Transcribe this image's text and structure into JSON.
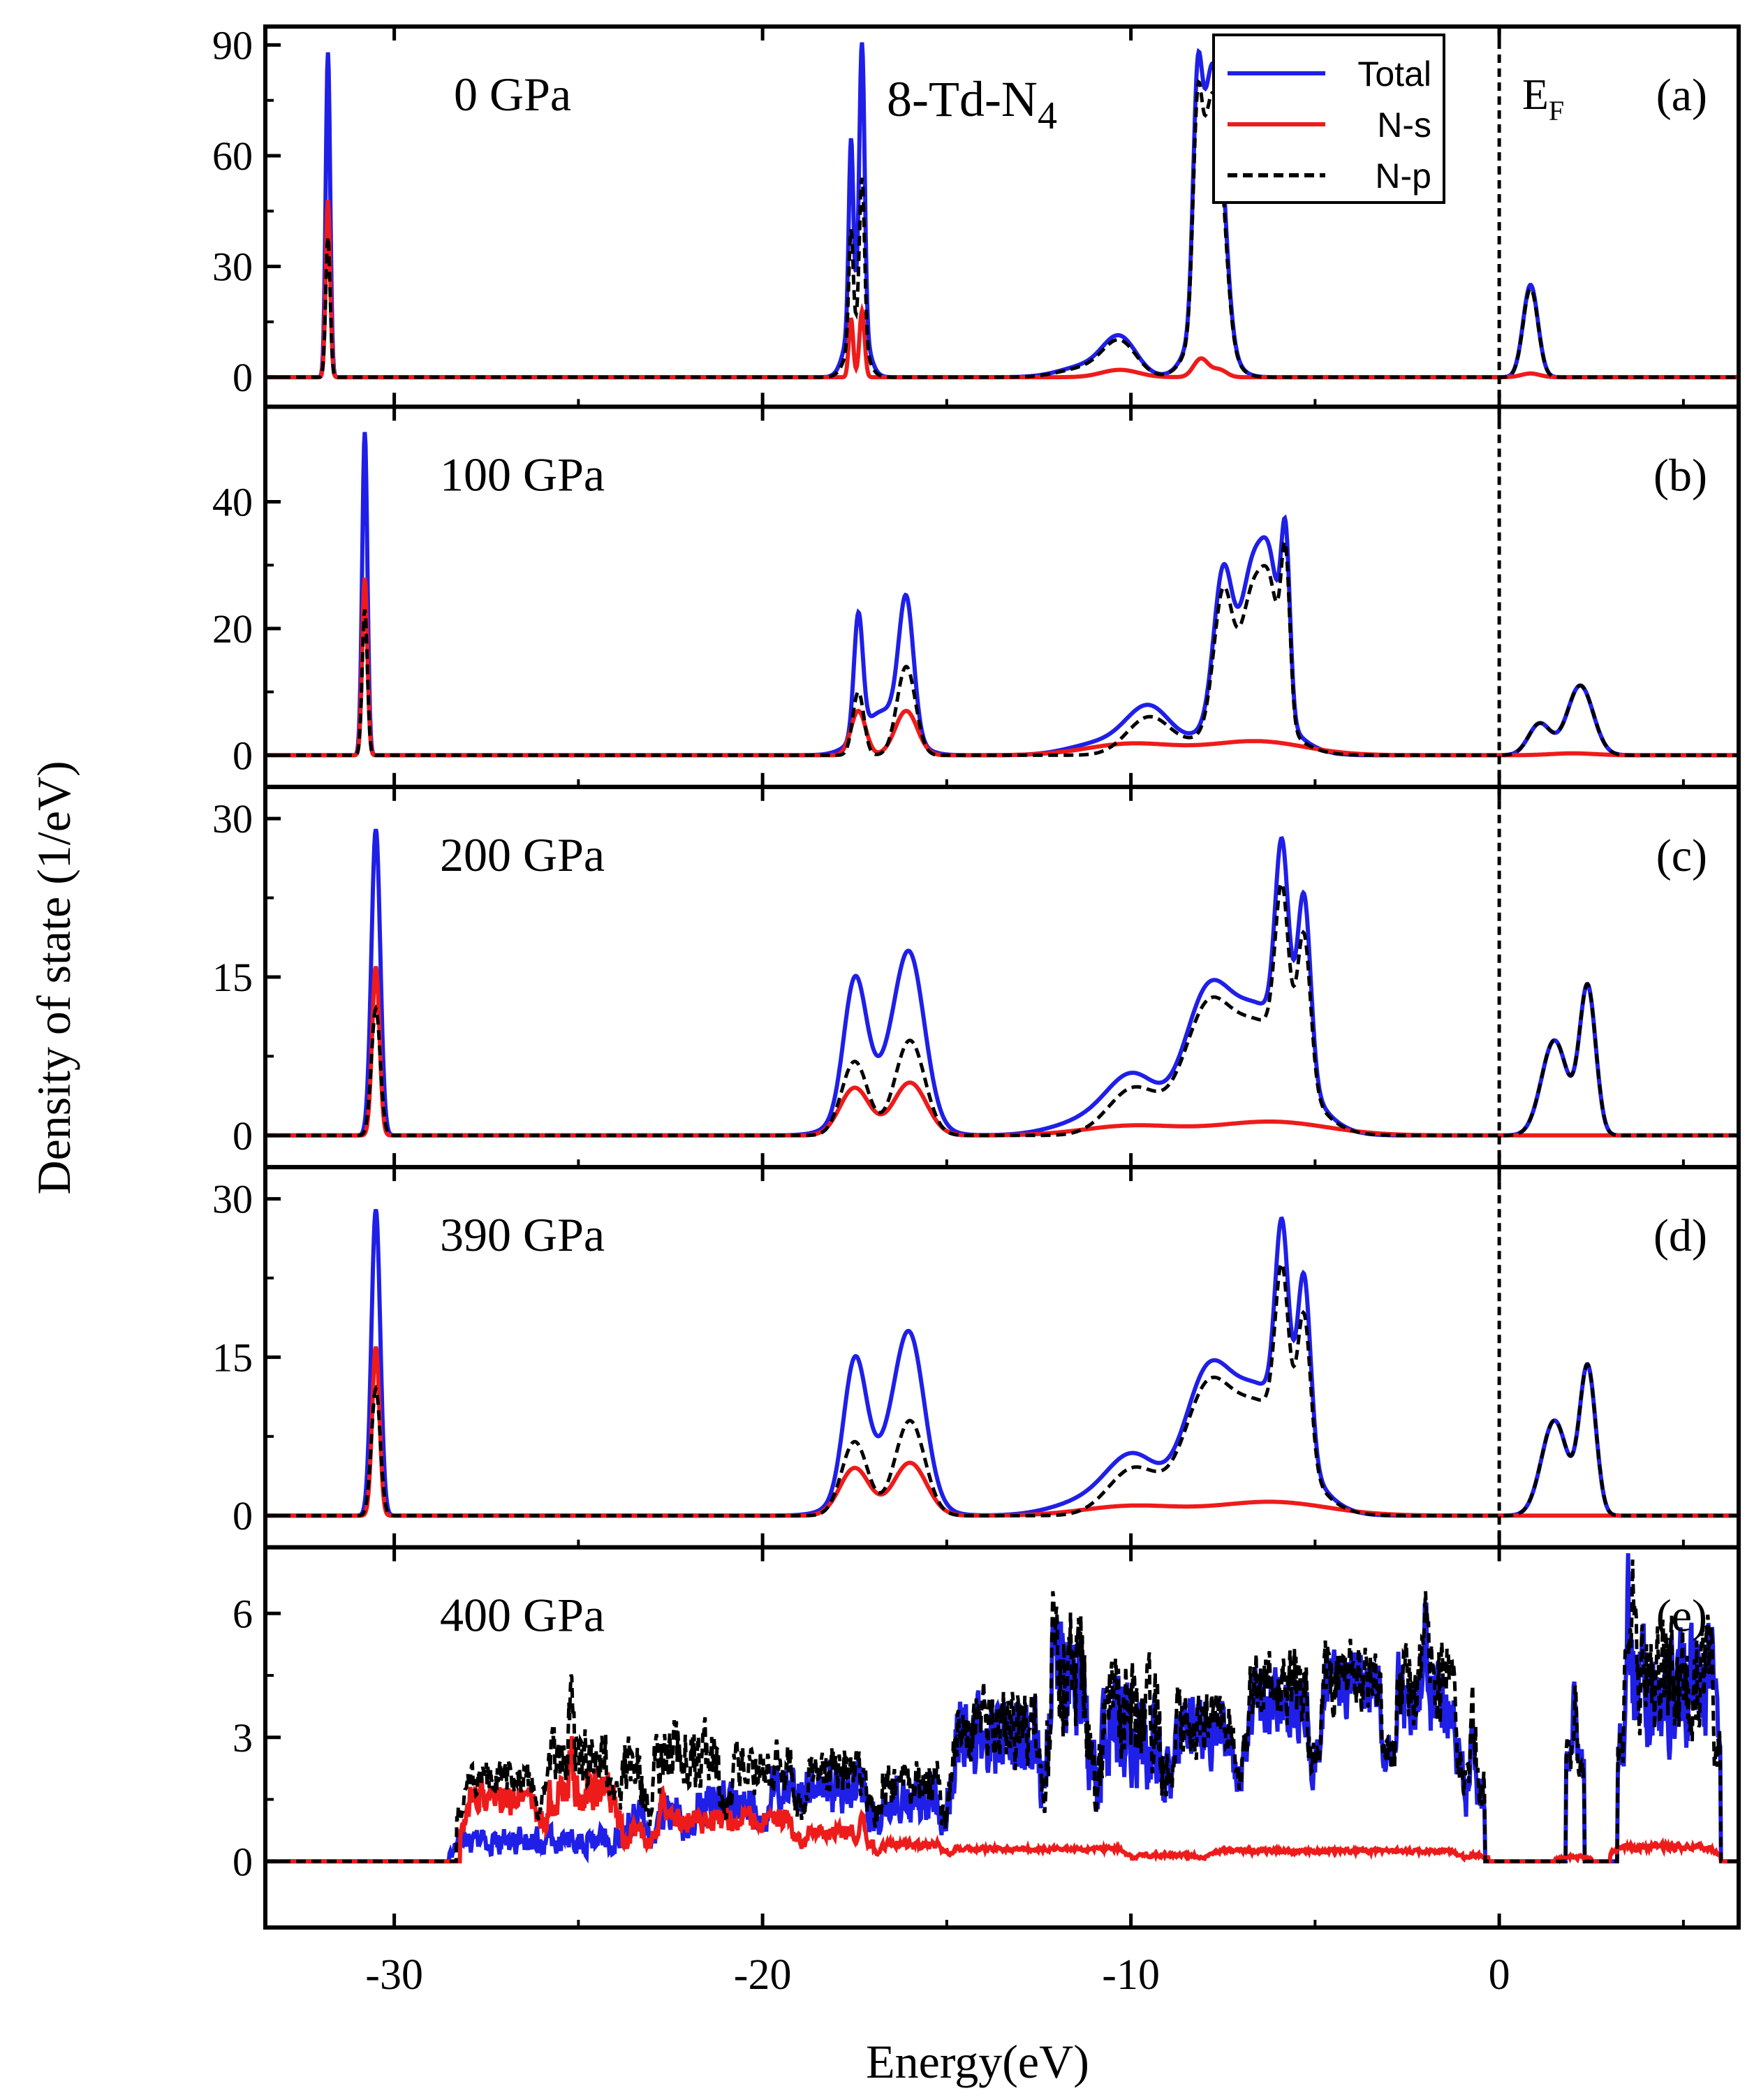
{
  "figure": {
    "y_axis_label": "Density of state (1/eV)",
    "x_axis_label": "Energy(eV)",
    "x_tick_labels": [
      "-30",
      "-20",
      "-10",
      "0"
    ],
    "structure_label_prefix": "8-Td-N",
    "structure_label_subscript": "4",
    "fermi_label_main": "E",
    "fermi_label_sub": "F",
    "legend": [
      {
        "name": "Total",
        "color": "#1f1fe8",
        "dash": "solid"
      },
      {
        "name": "N-s",
        "color": "#ee1b1b",
        "dash": "solid"
      },
      {
        "name": "N-p",
        "color": "#000000",
        "dash": "dashed"
      }
    ]
  },
  "chart_data": [
    {
      "type": "line",
      "panel_label": "(a)",
      "pressure_label": "0 GPa",
      "xlim": [
        -33.5,
        6.5
      ],
      "ylim": [
        -8,
        95
      ],
      "y_ticks": [
        0,
        30,
        60,
        90
      ],
      "y_tick_labels": [
        "0",
        "30",
        "60",
        "90"
      ],
      "fermi_level": 0,
      "series": [
        {
          "name": "Total",
          "peaks": [
            [
              -31.8,
              0.06,
              88
            ],
            [
              -17.6,
              0.06,
              48
            ],
            [
              -17.3,
              0.07,
              74
            ],
            [
              -17.45,
              0.25,
              20
            ],
            [
              -10.3,
              0.45,
              10
            ],
            [
              -11.2,
              0.7,
              3
            ],
            [
              -8.2,
              0.12,
              54
            ],
            [
              -7.9,
              0.2,
              45
            ],
            [
              -7.6,
              0.2,
              42
            ],
            [
              -7.9,
              0.45,
              20
            ],
            [
              0.85,
              0.2,
              25
            ]
          ]
        },
        {
          "name": "N-s",
          "peaks": [
            [
              -31.8,
              0.06,
              48
            ],
            [
              -17.6,
              0.06,
              16
            ],
            [
              -17.3,
              0.07,
              18
            ],
            [
              -10.3,
              0.5,
              2
            ],
            [
              -8.1,
              0.2,
              5
            ],
            [
              -7.6,
              0.2,
              2
            ],
            [
              0.85,
              0.25,
              1
            ]
          ]
        },
        {
          "name": "N-p",
          "peaks": [
            [
              -31.8,
              0.06,
              38
            ],
            [
              -17.6,
              0.06,
              30
            ],
            [
              -17.3,
              0.07,
              44
            ],
            [
              -17.45,
              0.25,
              12
            ],
            [
              -10.3,
              0.45,
              9
            ],
            [
              -11.2,
              0.7,
              2.5
            ],
            [
              -8.2,
              0.12,
              49
            ],
            [
              -7.9,
              0.2,
              41
            ],
            [
              -7.6,
              0.2,
              38
            ],
            [
              -7.9,
              0.45,
              18
            ],
            [
              0.85,
              0.2,
              24
            ]
          ]
        }
      ]
    },
    {
      "type": "line",
      "panel_label": "(b)",
      "pressure_label": "100 GPa",
      "xlim": [
        -33.5,
        6.5
      ],
      "ylim": [
        -5,
        55
      ],
      "y_ticks": [
        0,
        20,
        40
      ],
      "y_tick_labels": [
        "0",
        "20",
        "40"
      ],
      "fermi_level": 0,
      "series": [
        {
          "name": "Total",
          "peaks": [
            [
              -30.8,
              0.07,
              51
            ],
            [
              -17.4,
              0.12,
              19
            ],
            [
              -16.1,
              0.2,
              21
            ],
            [
              -16.7,
              0.6,
              7
            ],
            [
              -9.5,
              0.6,
              7
            ],
            [
              -10.7,
              0.9,
              2
            ],
            [
              -7.5,
              0.25,
              22
            ],
            [
              -6.7,
              0.3,
              19
            ],
            [
              -6.2,
              0.25,
              19
            ],
            [
              -5.8,
              0.12,
              26
            ],
            [
              -6.8,
              0.9,
              10
            ],
            [
              1.1,
              0.3,
              5
            ],
            [
              2.2,
              0.35,
              11
            ]
          ]
        },
        {
          "name": "N-s",
          "peaks": [
            [
              -30.8,
              0.07,
              28
            ],
            [
              -17.4,
              0.2,
              7
            ],
            [
              -16.1,
              0.3,
              7
            ],
            [
              -10,
              1.2,
              1.8
            ],
            [
              -6.6,
              1.3,
              2.2
            ],
            [
              2.0,
              0.6,
              0.3
            ]
          ]
        },
        {
          "name": "N-p",
          "peaks": [
            [
              -30.8,
              0.07,
              23
            ],
            [
              -17.4,
              0.15,
              10
            ],
            [
              -16.1,
              0.25,
              14
            ],
            [
              -9.5,
              0.6,
              6
            ],
            [
              -7.5,
              0.25,
              20
            ],
            [
              -6.7,
              0.3,
              17
            ],
            [
              -6.2,
              0.25,
              17
            ],
            [
              -5.8,
              0.12,
              24
            ],
            [
              -6.8,
              0.9,
              8
            ],
            [
              1.1,
              0.3,
              5
            ],
            [
              2.2,
              0.35,
              11
            ]
          ]
        }
      ]
    },
    {
      "type": "line",
      "panel_label": "(c)",
      "pressure_label": "200 GPa",
      "xlim": [
        -33.5,
        6.5
      ],
      "ylim": [
        -3,
        33
      ],
      "y_ticks": [
        0,
        15,
        30
      ],
      "y_tick_labels": [
        "0",
        "15",
        "30"
      ],
      "fermi_level": 0,
      "series": [
        {
          "name": "Total",
          "peaks": [
            [
              -30.5,
              0.12,
              29
            ],
            [
              -17.5,
              0.3,
              12
            ],
            [
              -16.0,
              0.4,
              14
            ],
            [
              -16.7,
              0.8,
              5
            ],
            [
              -9.9,
              0.7,
              5
            ],
            [
              -11.0,
              1.0,
              1.5
            ],
            [
              -8.0,
              0.6,
              10
            ],
            [
              -6.5,
              1.0,
              12
            ],
            [
              -5.9,
              0.18,
              18
            ],
            [
              -5.3,
              0.18,
              17
            ],
            [
              1.5,
              0.35,
              9
            ],
            [
              2.4,
              0.22,
              14
            ]
          ]
        },
        {
          "name": "N-s",
          "peaks": [
            [
              -30.5,
              0.1,
              16
            ],
            [
              -17.5,
              0.4,
              4.5
            ],
            [
              -16.0,
              0.45,
              5
            ],
            [
              -10,
              1.3,
              0.9
            ],
            [
              -6.2,
              1.5,
              1.3
            ]
          ]
        },
        {
          "name": "N-p",
          "peaks": [
            [
              -30.5,
              0.12,
              12
            ],
            [
              -17.5,
              0.35,
              7
            ],
            [
              -16.0,
              0.4,
              9
            ],
            [
              -9.9,
              0.7,
              4.5
            ],
            [
              -8.0,
              0.6,
              9
            ],
            [
              -6.5,
              1.0,
              10.5
            ],
            [
              -5.9,
              0.18,
              15
            ],
            [
              -5.3,
              0.18,
              14
            ],
            [
              1.5,
              0.35,
              9
            ],
            [
              2.4,
              0.22,
              14
            ]
          ]
        }
      ]
    },
    {
      "type": "line",
      "panel_label": "(d)",
      "pressure_label": "390 GPa",
      "xlim": [
        -33.5,
        6.5
      ],
      "ylim": [
        -3,
        33
      ],
      "y_ticks": [
        0,
        15,
        30
      ],
      "y_tick_labels": [
        "0",
        "15",
        "30"
      ],
      "fermi_level": 0,
      "series": [
        {
          "name": "Total",
          "peaks": [
            [
              -30.5,
              0.12,
              29
            ],
            [
              -17.5,
              0.3,
              12
            ],
            [
              -16.0,
              0.4,
              14
            ],
            [
              -16.7,
              0.8,
              5
            ],
            [
              -9.9,
              0.7,
              5
            ],
            [
              -11.0,
              1.0,
              1.5
            ],
            [
              -8.0,
              0.6,
              10
            ],
            [
              -6.5,
              1.0,
              12
            ],
            [
              -5.9,
              0.18,
              18
            ],
            [
              -5.3,
              0.18,
              17
            ],
            [
              1.5,
              0.35,
              9
            ],
            [
              2.4,
              0.22,
              14
            ]
          ]
        },
        {
          "name": "N-s",
          "peaks": [
            [
              -30.5,
              0.1,
              16
            ],
            [
              -17.5,
              0.4,
              4.5
            ],
            [
              -16.0,
              0.45,
              5
            ],
            [
              -10,
              1.3,
              0.9
            ],
            [
              -6.2,
              1.5,
              1.3
            ]
          ]
        },
        {
          "name": "N-p",
          "peaks": [
            [
              -30.5,
              0.12,
              12
            ],
            [
              -17.5,
              0.35,
              7
            ],
            [
              -16.0,
              0.4,
              9
            ],
            [
              -9.9,
              0.7,
              4.5
            ],
            [
              -8.0,
              0.6,
              9
            ],
            [
              -6.5,
              1.0,
              10.5
            ],
            [
              -5.9,
              0.18,
              15
            ],
            [
              -5.3,
              0.18,
              14
            ],
            [
              1.5,
              0.35,
              9
            ],
            [
              2.4,
              0.22,
              14
            ]
          ]
        }
      ]
    },
    {
      "type": "line",
      "panel_label": "(e)",
      "pressure_label": "400 GPa",
      "xlim": [
        -33.5,
        6.5
      ],
      "ylim": [
        -1.6,
        7.6
      ],
      "y_ticks": [
        0,
        3,
        6
      ],
      "y_tick_labels": [
        "0",
        "3",
        "6"
      ],
      "fermi_level": null,
      "series": [
        {
          "name": "Total",
          "noisy_bands": [
            [
              -28.5,
              -24,
              0.5,
              0.3
            ],
            [
              -24,
              -23,
              1.0,
              0.5
            ],
            [
              -23,
              -22,
              1.2,
              0.6
            ],
            [
              -22,
              -20,
              1.4,
              0.5
            ],
            [
              -20,
              -17,
              1.8,
              0.6
            ],
            [
              -17,
              -15,
              1.5,
              0.6
            ],
            [
              -15,
              -12.3,
              3.0,
              1.0
            ],
            [
              -12.3,
              -11,
              4.3,
              1.5
            ],
            [
              -11,
              -9,
              3.2,
              1.3
            ],
            [
              -9,
              -7,
              3.2,
              0.8
            ],
            [
              -7,
              -5,
              4.0,
              0.9
            ],
            [
              -5,
              -3,
              4.3,
              0.8
            ],
            [
              -3,
              -1,
              4.0,
              1.0
            ],
            [
              -1,
              -0.4,
              2.8,
              1.0
            ],
            [
              1.8,
              2.3,
              4.0,
              0.8
            ],
            [
              3.2,
              6.0,
              4.2,
              1.4
            ]
          ],
          "peaks": [
            [
              -12.1,
              0.06,
              2.5
            ],
            [
              -2.0,
              0.06,
              1.6
            ],
            [
              3.5,
              0.05,
              1.8
            ],
            [
              5.8,
              0.08,
              1.5
            ]
          ]
        },
        {
          "name": "N-s",
          "noisy_bands": [
            [
              -28.2,
              -26,
              1.5,
              0.4
            ],
            [
              -26,
              -23.8,
              1.7,
              0.5
            ],
            [
              -23.8,
              -23,
              0.7,
              0.3
            ],
            [
              -23,
              -19,
              1.0,
              0.3
            ],
            [
              -19,
              -17,
              0.7,
              0.2
            ],
            [
              -17,
              -15,
              0.4,
              0.1
            ],
            [
              -15,
              -10,
              0.3,
              0.05
            ],
            [
              -10,
              -8,
              0.15,
              0.04
            ],
            [
              -8,
              -1,
              0.25,
              0.05
            ],
            [
              -1,
              -0.3,
              0.15,
              0.05
            ],
            [
              1.5,
              2.5,
              0.1,
              0.05
            ],
            [
              3.0,
              6.0,
              0.35,
              0.08
            ]
          ],
          "peaks": [
            [
              -25.2,
              0.05,
              1.2
            ],
            [
              -22.7,
              0.05,
              0.8
            ],
            [
              -17.3,
              0.05,
              0.4
            ]
          ]
        },
        {
          "name": "N-p",
          "noisy_bands": [
            [
              -28.3,
              -26,
              2.0,
              0.4
            ],
            [
              -26,
              -24,
              2.6,
              0.7
            ],
            [
              -24,
              -23,
              2.2,
              0.8
            ],
            [
              -23,
              -21,
              2.5,
              0.8
            ],
            [
              -21,
              -19,
              2.3,
              0.6
            ],
            [
              -19,
              -17,
              2.1,
              0.6
            ],
            [
              -17,
              -15,
              1.9,
              0.6
            ],
            [
              -15,
              -12.3,
              3.2,
              1.0
            ],
            [
              -12.3,
              -11,
              4.6,
              1.5
            ],
            [
              -11,
              -9,
              3.5,
              1.3
            ],
            [
              -9,
              -7,
              3.4,
              0.8
            ],
            [
              -7,
              -5,
              4.2,
              0.9
            ],
            [
              -5,
              -3,
              4.5,
              0.8
            ],
            [
              -3,
              -1,
              4.3,
              1.0
            ],
            [
              -1,
              -0.4,
              3.0,
              1.0
            ],
            [
              1.8,
              2.3,
              4.1,
              0.8
            ],
            [
              3.2,
              6.0,
              4.5,
              1.4
            ]
          ],
          "peaks": [
            [
              -25.2,
              0.05,
              1.4
            ],
            [
              -22.9,
              0.05,
              1.2
            ],
            [
              -12.1,
              0.06,
              2.6
            ],
            [
              -2.0,
              0.06,
              1.8
            ],
            [
              3.6,
              0.05,
              2.0
            ]
          ]
        }
      ]
    }
  ]
}
